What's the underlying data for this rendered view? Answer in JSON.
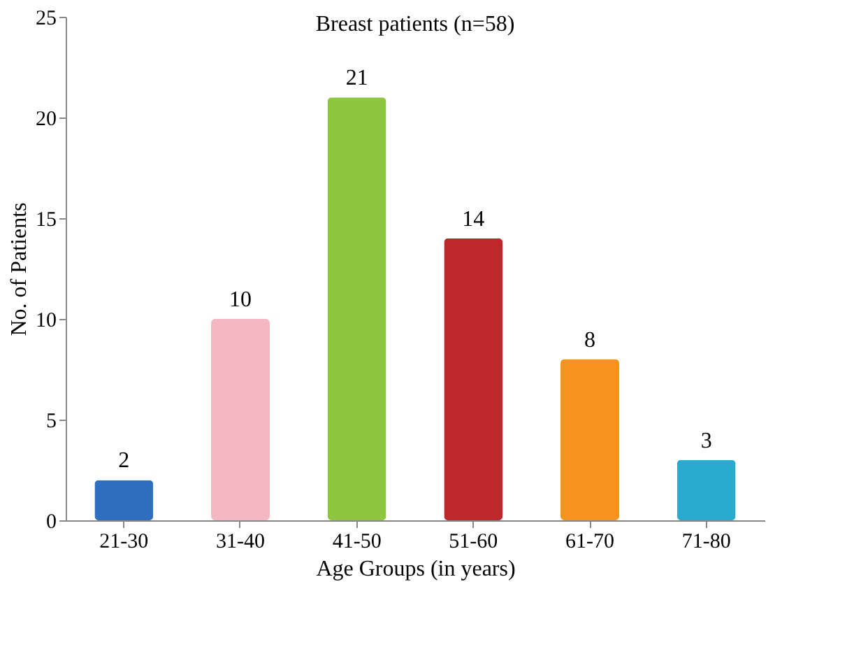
{
  "chart_data": {
    "type": "bar",
    "title": "Breast patients (n=58)",
    "xlabel": "Age Groups (in years)",
    "ylabel": "No. of Patients",
    "categories": [
      "21-30",
      "31-40",
      "41-50",
      "51-60",
      "61-70",
      "71-80"
    ],
    "values": [
      2,
      10,
      21,
      14,
      8,
      3
    ],
    "colors": [
      "#2f6fbf",
      "#f4b8c0",
      "#8dc63f",
      "#c0272d",
      "#f7941d",
      "#29abd0"
    ],
    "ylim": [
      0,
      25
    ],
    "yticks": [
      0,
      5,
      10,
      15,
      20,
      25
    ],
    "grid": false,
    "data_labels": true
  }
}
